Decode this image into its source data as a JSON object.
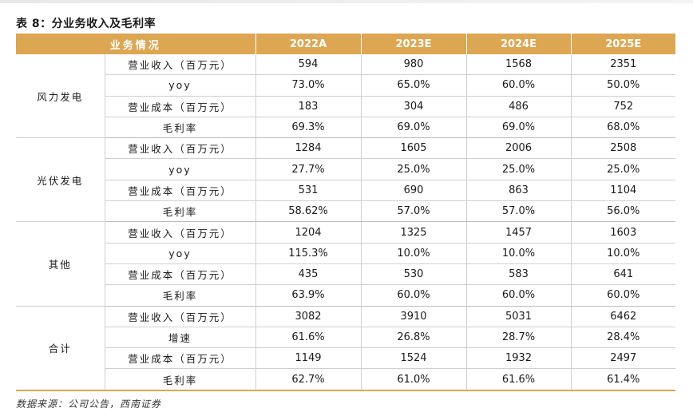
{
  "title": "表 8：分业务收入及毛利率",
  "table": {
    "headers": [
      "业务情况",
      "2022A",
      "2023E",
      "2024E",
      "2025E"
    ],
    "groups": [
      {
        "segment": "风力发电",
        "rows": [
          {
            "metric": "营业收入（百万元）",
            "values": [
              "594",
              "980",
              "1568",
              "2351"
            ]
          },
          {
            "metric": "yoy",
            "values": [
              "73.0%",
              "65.0%",
              "60.0%",
              "50.0%"
            ]
          },
          {
            "metric": "营业成本（百万元）",
            "values": [
              "183",
              "304",
              "486",
              "752"
            ]
          },
          {
            "metric": "毛利率",
            "values": [
              "69.3%",
              "69.0%",
              "69.0%",
              "68.0%"
            ]
          }
        ]
      },
      {
        "segment": "光伏发电",
        "rows": [
          {
            "metric": "营业收入（百万元）",
            "values": [
              "1284",
              "1605",
              "2006",
              "2508"
            ]
          },
          {
            "metric": "yoy",
            "values": [
              "27.7%",
              "25.0%",
              "25.0%",
              "25.0%"
            ]
          },
          {
            "metric": "营业成本（百万元）",
            "values": [
              "531",
              "690",
              "863",
              "1104"
            ]
          },
          {
            "metric": "毛利率",
            "values": [
              "58.62%",
              "57.0%",
              "57.0%",
              "56.0%"
            ]
          }
        ]
      },
      {
        "segment": "其他",
        "rows": [
          {
            "metric": "营业收入（百万元）",
            "values": [
              "1204",
              "1325",
              "1457",
              "1603"
            ]
          },
          {
            "metric": "yoy",
            "values": [
              "115.3%",
              "10.0%",
              "10.0%",
              "10.0%"
            ]
          },
          {
            "metric": "营业成本（百万元）",
            "values": [
              "435",
              "530",
              "583",
              "641"
            ]
          },
          {
            "metric": "毛利率",
            "values": [
              "63.9%",
              "60.0%",
              "60.0%",
              "60.0%"
            ]
          }
        ]
      },
      {
        "segment": "合计",
        "rows": [
          {
            "metric": "营业收入（百万元）",
            "values": [
              "3082",
              "3910",
              "5031",
              "6462"
            ]
          },
          {
            "metric": "增速",
            "values": [
              "61.6%",
              "26.8%",
              "28.7%",
              "28.4%"
            ]
          },
          {
            "metric": "营业成本（百万元）",
            "values": [
              "1149",
              "1524",
              "1932",
              "2497"
            ]
          },
          {
            "metric": "毛利率",
            "values": [
              "62.7%",
              "61.0%",
              "61.6%",
              "61.4%"
            ]
          }
        ]
      }
    ]
  },
  "source": "数据来源：公司公告，西南证券",
  "colors": {
    "header_bg": "#dda653",
    "header_text": "#ffffff",
    "grid": "#cfcfcf"
  }
}
